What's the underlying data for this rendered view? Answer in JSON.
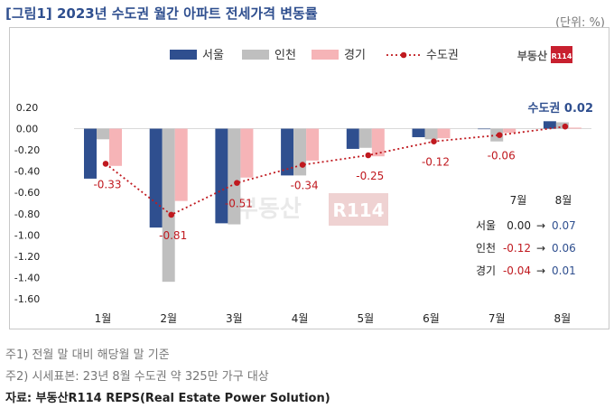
{
  "header": {
    "title": "[그림1] 2023년 수도권 월간 아파트 전세가격 변동률",
    "unit": "(단위: %)"
  },
  "brand": {
    "logo_text": "부동산",
    "logo_badge": "R114",
    "watermark_text": "부동산",
    "watermark_badge": "R114"
  },
  "footer": {
    "note1": "주1) 전월 말 대비 해당월 말 기준",
    "note2": "주2) 시세표본: 23년 8월 수도권 약 325만 가구 대상",
    "source": "자료: 부동산R114 REPS(Real Estate Power Solution)"
  },
  "colors": {
    "seoul": "#2f4f8f",
    "incheon": "#bfbfbf",
    "gyeonggi": "#f6b4b7",
    "metro_line": "#c0191f",
    "point_label": "#c0191f",
    "highlight": "#2f4f8f"
  },
  "chart_data": {
    "type": "bar",
    "categories": [
      "1월",
      "2월",
      "3월",
      "4월",
      "5월",
      "6월",
      "7월",
      "8월"
    ],
    "series": [
      {
        "name": "서울",
        "values": [
          -0.47,
          -0.93,
          -0.89,
          -0.44,
          -0.19,
          -0.08,
          0.0,
          0.07
        ]
      },
      {
        "name": "인천",
        "values": [
          -0.1,
          -1.44,
          -0.9,
          -0.44,
          -0.18,
          -0.1,
          -0.12,
          0.06
        ]
      },
      {
        "name": "경기",
        "values": [
          -0.35,
          -0.68,
          -0.46,
          -0.3,
          -0.26,
          -0.09,
          -0.04,
          0.01
        ]
      },
      {
        "name": "수도권",
        "type": "line",
        "values": [
          -0.33,
          -0.81,
          -0.51,
          -0.34,
          -0.25,
          -0.12,
          -0.06,
          0.02
        ]
      }
    ],
    "data_labels": [
      "-0.33",
      "-0.81",
      "-0.51",
      "-0.34",
      "-0.25",
      "-0.12",
      "-0.06"
    ],
    "last_label": "수도권 0.02",
    "ylim": [
      -1.6,
      0.2
    ],
    "yticks": [
      "0.20",
      "0.00",
      "-0.20",
      "-0.40",
      "-0.60",
      "-0.80",
      "-1.00",
      "-1.20",
      "-1.40",
      "-1.60"
    ],
    "legend_position": "top-center",
    "grid": false,
    "inset_table": {
      "headers": [
        "7월",
        "8월"
      ],
      "rows": [
        {
          "label": "서울",
          "jul": "0.00",
          "aug": "0.07",
          "arrow": "→"
        },
        {
          "label": "인천",
          "jul": "-0.12",
          "aug": "0.06",
          "arrow": "→"
        },
        {
          "label": "경기",
          "jul": "-0.04",
          "aug": "0.01",
          "arrow": "→"
        }
      ]
    }
  }
}
